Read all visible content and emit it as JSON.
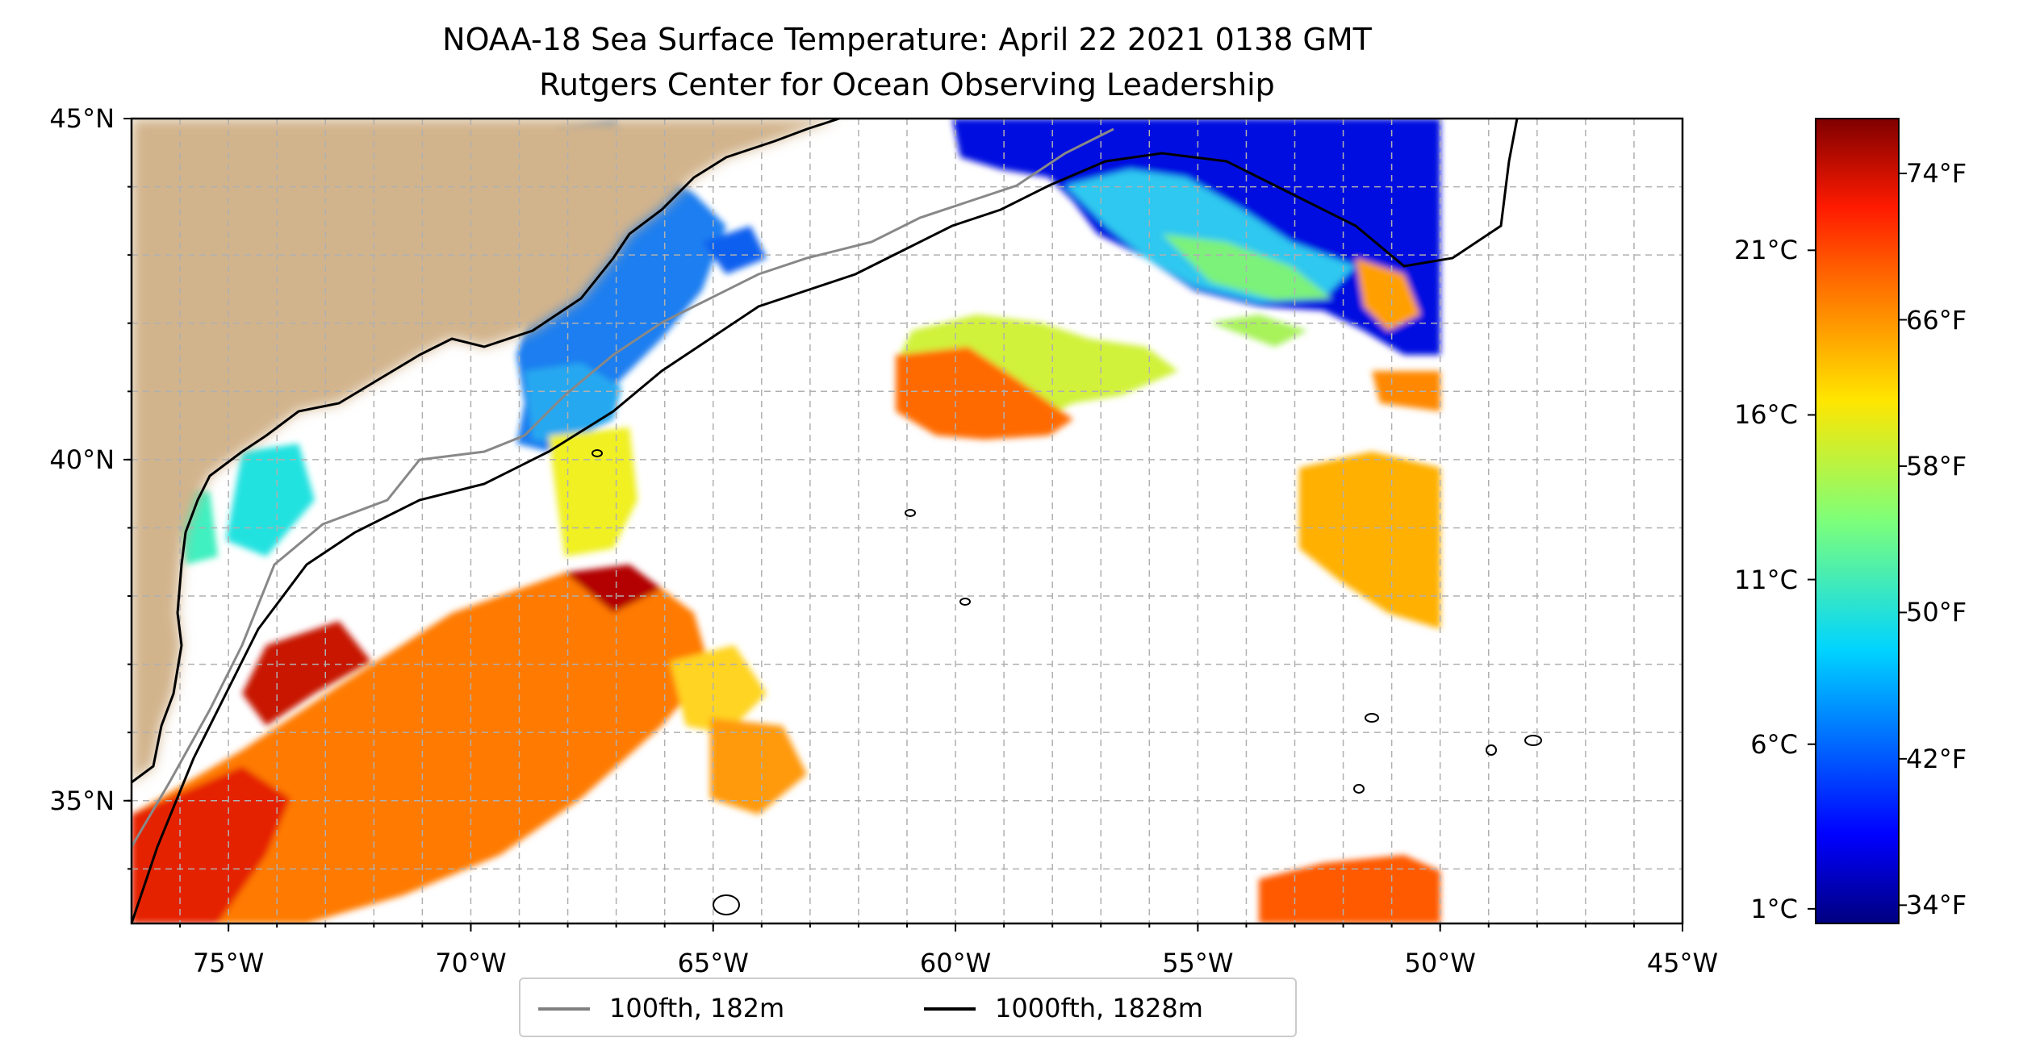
{
  "title": "NOAA-18 Sea Surface Temperature: April 22 2021 0138 GMT",
  "subtitle": "Rutgers Center for Ocean Observing Leadership",
  "map": {
    "extent": {
      "lon_min": -77,
      "lon_max": -45,
      "lat_min": 33.2,
      "lat_max": 45
    },
    "lat_labels": [
      {
        "value": 45,
        "text": "45°N"
      },
      {
        "value": 40,
        "text": "40°N"
      },
      {
        "value": 35,
        "text": "35°N"
      }
    ],
    "lon_labels": [
      {
        "value": -75,
        "text": "75°W"
      },
      {
        "value": -70,
        "text": "70°W"
      },
      {
        "value": -65,
        "text": "65°W"
      },
      {
        "value": -60,
        "text": "60°W"
      },
      {
        "value": -55,
        "text": "55°W"
      },
      {
        "value": -50,
        "text": "50°W"
      },
      {
        "value": -45,
        "text": "45°W"
      }
    ],
    "colors": {
      "land": "#d2b48c",
      "lakes": "#9fbfe8",
      "grid": "#b0b0b0",
      "coast": "#000000"
    }
  },
  "colorbar": {
    "celsius_labels": [
      {
        "value": 1,
        "text": "1°C"
      },
      {
        "value": 6,
        "text": "6°C"
      },
      {
        "value": 11,
        "text": "11°C"
      },
      {
        "value": 16,
        "text": "16°C"
      },
      {
        "value": 21,
        "text": "21°C"
      }
    ],
    "fahrenheit_labels": [
      {
        "value": 34,
        "text": "34°F"
      },
      {
        "value": 42,
        "text": "42°F"
      },
      {
        "value": 50,
        "text": "50°F"
      },
      {
        "value": 58,
        "text": "58°F"
      },
      {
        "value": 66,
        "text": "66°F"
      },
      {
        "value": 74,
        "text": "74°F"
      }
    ],
    "range_f": [
      33,
      77
    ],
    "colormap": "jet"
  },
  "legend": {
    "items": [
      {
        "label": "100fth, 182m",
        "color": "#808080"
      },
      {
        "label": "1000fth, 1828m",
        "color": "#000000"
      }
    ]
  }
}
